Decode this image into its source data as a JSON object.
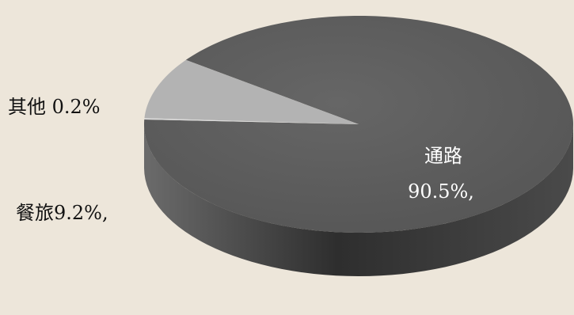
{
  "chart_data": {
    "type": "pie",
    "style": "3d",
    "categories": [
      "通路",
      "餐旅",
      "其他"
    ],
    "values": [
      90.5,
      9.2,
      0.2
    ],
    "labels": {
      "main_name": "通路",
      "main_value": "90.5%,",
      "second": "餐旅9.2%,",
      "third": "其他 0.2%"
    },
    "colors": {
      "main_top": "#5f5f5f",
      "main_side": "#3c3c3c",
      "second_top": "#b3b3b3",
      "second_side": "#828282",
      "third_top": "#d9d9d9",
      "background": "#ede6da"
    }
  }
}
